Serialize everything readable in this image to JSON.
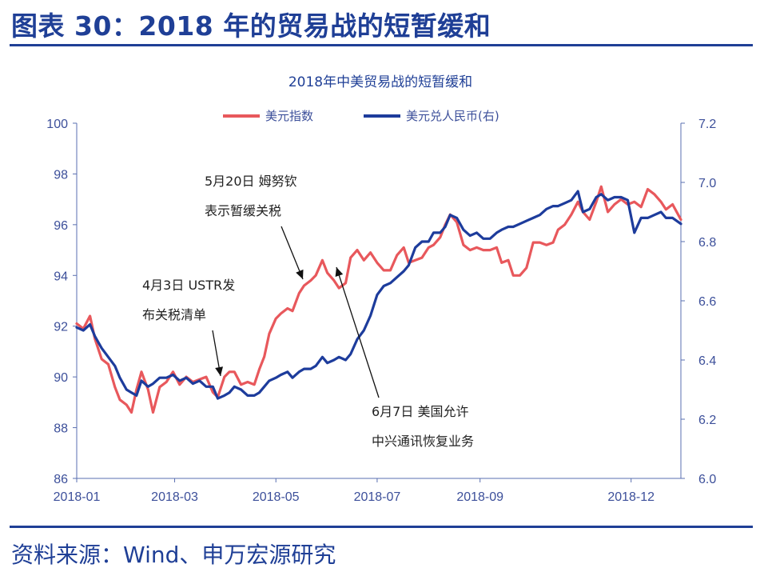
{
  "figure_title": "图表 30：2018 年的贸易战的短暂缓和",
  "source": "资料来源：Wind、申万宏源研究",
  "colors": {
    "accent": "#1f3f96",
    "dollar_index": "#e8585c",
    "usdcny": "#1d3c9c"
  },
  "chart_data": {
    "type": "line",
    "title": "2018年中美贸易战的短暂缓和",
    "legend_position": "top",
    "grid": false,
    "x_ticks": [
      "2018-01",
      "2018-03",
      "2018-05",
      "2018-07",
      "2018-09",
      "2018-12"
    ],
    "x_range": [
      "2018-01-01",
      "2018-12-31"
    ],
    "y_left": {
      "ylim": [
        86,
        100
      ],
      "ticks": [
        86,
        88,
        90,
        92,
        94,
        96,
        98,
        100
      ]
    },
    "y_right": {
      "ylim": [
        6.0,
        7.2
      ],
      "ticks": [
        "6.0",
        "6.2",
        "6.4",
        "6.6",
        "6.8",
        "7.0",
        "7.2"
      ]
    },
    "series": [
      {
        "name": "美元指数",
        "axis": "left",
        "color": "#e8585c",
        "points": [
          [
            "2018-01-01",
            92.1
          ],
          [
            "2018-01-05",
            91.9
          ],
          [
            "2018-01-09",
            92.4
          ],
          [
            "2018-01-12",
            91.5
          ],
          [
            "2018-01-16",
            90.7
          ],
          [
            "2018-01-20",
            90.5
          ],
          [
            "2018-01-24",
            89.6
          ],
          [
            "2018-01-27",
            89.1
          ],
          [
            "2018-01-31",
            88.9
          ],
          [
            "2018-02-03",
            88.6
          ],
          [
            "2018-02-06",
            89.5
          ],
          [
            "2018-02-09",
            90.2
          ],
          [
            "2018-02-13",
            89.5
          ],
          [
            "2018-02-16",
            88.6
          ],
          [
            "2018-02-20",
            89.6
          ],
          [
            "2018-02-24",
            89.8
          ],
          [
            "2018-02-28",
            90.2
          ],
          [
            "2018-03-04",
            89.7
          ],
          [
            "2018-03-08",
            90.0
          ],
          [
            "2018-03-12",
            89.8
          ],
          [
            "2018-03-16",
            89.9
          ],
          [
            "2018-03-20",
            90.0
          ],
          [
            "2018-03-24",
            89.4
          ],
          [
            "2018-03-27",
            89.2
          ],
          [
            "2018-03-31",
            90.0
          ],
          [
            "2018-04-03",
            90.2
          ],
          [
            "2018-04-06",
            90.2
          ],
          [
            "2018-04-10",
            89.7
          ],
          [
            "2018-04-14",
            89.8
          ],
          [
            "2018-04-18",
            89.7
          ],
          [
            "2018-04-21",
            90.3
          ],
          [
            "2018-04-24",
            90.8
          ],
          [
            "2018-04-27",
            91.7
          ],
          [
            "2018-05-01",
            92.3
          ],
          [
            "2018-05-04",
            92.5
          ],
          [
            "2018-05-08",
            92.7
          ],
          [
            "2018-05-11",
            92.6
          ],
          [
            "2018-05-15",
            93.3
          ],
          [
            "2018-05-18",
            93.6
          ],
          [
            "2018-05-22",
            93.8
          ],
          [
            "2018-05-25",
            94.0
          ],
          [
            "2018-05-29",
            94.6
          ],
          [
            "2018-06-01",
            94.1
          ],
          [
            "2018-06-05",
            93.8
          ],
          [
            "2018-06-08",
            93.5
          ],
          [
            "2018-06-12",
            93.7
          ],
          [
            "2018-06-15",
            94.7
          ],
          [
            "2018-06-19",
            95.0
          ],
          [
            "2018-06-23",
            94.6
          ],
          [
            "2018-06-27",
            94.9
          ],
          [
            "2018-07-01",
            94.5
          ],
          [
            "2018-07-05",
            94.2
          ],
          [
            "2018-07-09",
            94.2
          ],
          [
            "2018-07-13",
            94.8
          ],
          [
            "2018-07-17",
            95.1
          ],
          [
            "2018-07-20",
            94.5
          ],
          [
            "2018-07-24",
            94.6
          ],
          [
            "2018-07-28",
            94.7
          ],
          [
            "2018-08-01",
            95.1
          ],
          [
            "2018-08-04",
            95.2
          ],
          [
            "2018-08-08",
            95.5
          ],
          [
            "2018-08-11",
            96.0
          ],
          [
            "2018-08-14",
            96.4
          ],
          [
            "2018-08-18",
            96.1
          ],
          [
            "2018-08-22",
            95.2
          ],
          [
            "2018-08-26",
            95.0
          ],
          [
            "2018-08-30",
            95.1
          ],
          [
            "2018-09-03",
            95.0
          ],
          [
            "2018-09-07",
            95.0
          ],
          [
            "2018-09-11",
            95.1
          ],
          [
            "2018-09-14",
            94.5
          ],
          [
            "2018-09-18",
            94.6
          ],
          [
            "2018-09-21",
            94.0
          ],
          [
            "2018-09-25",
            94.0
          ],
          [
            "2018-09-29",
            94.3
          ],
          [
            "2018-10-03",
            95.3
          ],
          [
            "2018-10-07",
            95.3
          ],
          [
            "2018-10-11",
            95.2
          ],
          [
            "2018-10-15",
            95.3
          ],
          [
            "2018-10-18",
            95.8
          ],
          [
            "2018-10-22",
            96.0
          ],
          [
            "2018-10-26",
            96.4
          ],
          [
            "2018-10-30",
            96.9
          ],
          [
            "2018-11-02",
            96.5
          ],
          [
            "2018-11-06",
            96.2
          ],
          [
            "2018-11-10",
            96.9
          ],
          [
            "2018-11-13",
            97.5
          ],
          [
            "2018-11-17",
            96.5
          ],
          [
            "2018-11-21",
            96.8
          ],
          [
            "2018-11-25",
            97.0
          ],
          [
            "2018-11-29",
            96.8
          ],
          [
            "2018-12-03",
            96.9
          ],
          [
            "2018-12-07",
            96.7
          ],
          [
            "2018-12-11",
            97.4
          ],
          [
            "2018-12-15",
            97.2
          ],
          [
            "2018-12-19",
            96.9
          ],
          [
            "2018-12-22",
            96.6
          ],
          [
            "2018-12-26",
            96.8
          ],
          [
            "2018-12-31",
            96.2
          ]
        ]
      },
      {
        "name": "美元兑人民币(右)",
        "axis": "right",
        "color": "#1d3c9c",
        "points": [
          [
            "2018-01-01",
            6.51
          ],
          [
            "2018-01-05",
            6.5
          ],
          [
            "2018-01-09",
            6.52
          ],
          [
            "2018-01-12",
            6.48
          ],
          [
            "2018-01-16",
            6.44
          ],
          [
            "2018-01-20",
            6.41
          ],
          [
            "2018-01-24",
            6.38
          ],
          [
            "2018-01-27",
            6.34
          ],
          [
            "2018-01-31",
            6.3
          ],
          [
            "2018-02-03",
            6.29
          ],
          [
            "2018-02-06",
            6.28
          ],
          [
            "2018-02-09",
            6.33
          ],
          [
            "2018-02-13",
            6.31
          ],
          [
            "2018-02-16",
            6.32
          ],
          [
            "2018-02-20",
            6.34
          ],
          [
            "2018-02-24",
            6.34
          ],
          [
            "2018-02-28",
            6.35
          ],
          [
            "2018-03-04",
            6.33
          ],
          [
            "2018-03-08",
            6.34
          ],
          [
            "2018-03-12",
            6.32
          ],
          [
            "2018-03-16",
            6.33
          ],
          [
            "2018-03-20",
            6.31
          ],
          [
            "2018-03-24",
            6.31
          ],
          [
            "2018-03-27",
            6.27
          ],
          [
            "2018-03-31",
            6.28
          ],
          [
            "2018-04-03",
            6.29
          ],
          [
            "2018-04-06",
            6.31
          ],
          [
            "2018-04-10",
            6.3
          ],
          [
            "2018-04-14",
            6.28
          ],
          [
            "2018-04-18",
            6.28
          ],
          [
            "2018-04-21",
            6.29
          ],
          [
            "2018-04-24",
            6.31
          ],
          [
            "2018-04-27",
            6.33
          ],
          [
            "2018-05-01",
            6.34
          ],
          [
            "2018-05-04",
            6.35
          ],
          [
            "2018-05-08",
            6.36
          ],
          [
            "2018-05-11",
            6.34
          ],
          [
            "2018-05-15",
            6.36
          ],
          [
            "2018-05-18",
            6.37
          ],
          [
            "2018-05-22",
            6.37
          ],
          [
            "2018-05-25",
            6.38
          ],
          [
            "2018-05-29",
            6.41
          ],
          [
            "2018-06-01",
            6.39
          ],
          [
            "2018-06-05",
            6.4
          ],
          [
            "2018-06-08",
            6.41
          ],
          [
            "2018-06-12",
            6.4
          ],
          [
            "2018-06-15",
            6.42
          ],
          [
            "2018-06-19",
            6.47
          ],
          [
            "2018-06-23",
            6.5
          ],
          [
            "2018-06-27",
            6.55
          ],
          [
            "2018-07-01",
            6.62
          ],
          [
            "2018-07-05",
            6.65
          ],
          [
            "2018-07-09",
            6.66
          ],
          [
            "2018-07-13",
            6.68
          ],
          [
            "2018-07-17",
            6.7
          ],
          [
            "2018-07-20",
            6.72
          ],
          [
            "2018-07-24",
            6.78
          ],
          [
            "2018-07-28",
            6.8
          ],
          [
            "2018-08-01",
            6.8
          ],
          [
            "2018-08-04",
            6.83
          ],
          [
            "2018-08-08",
            6.83
          ],
          [
            "2018-08-11",
            6.85
          ],
          [
            "2018-08-14",
            6.89
          ],
          [
            "2018-08-18",
            6.88
          ],
          [
            "2018-08-22",
            6.84
          ],
          [
            "2018-08-26",
            6.82
          ],
          [
            "2018-08-30",
            6.83
          ],
          [
            "2018-09-03",
            6.81
          ],
          [
            "2018-09-07",
            6.81
          ],
          [
            "2018-09-11",
            6.83
          ],
          [
            "2018-09-14",
            6.84
          ],
          [
            "2018-09-18",
            6.85
          ],
          [
            "2018-09-21",
            6.85
          ],
          [
            "2018-09-25",
            6.86
          ],
          [
            "2018-09-29",
            6.87
          ],
          [
            "2018-10-03",
            6.88
          ],
          [
            "2018-10-07",
            6.89
          ],
          [
            "2018-10-11",
            6.91
          ],
          [
            "2018-10-15",
            6.92
          ],
          [
            "2018-10-18",
            6.92
          ],
          [
            "2018-10-22",
            6.93
          ],
          [
            "2018-10-26",
            6.94
          ],
          [
            "2018-10-30",
            6.97
          ],
          [
            "2018-11-02",
            6.9
          ],
          [
            "2018-11-06",
            6.91
          ],
          [
            "2018-11-10",
            6.95
          ],
          [
            "2018-11-13",
            6.96
          ],
          [
            "2018-11-17",
            6.94
          ],
          [
            "2018-11-21",
            6.95
          ],
          [
            "2018-11-25",
            6.95
          ],
          [
            "2018-11-29",
            6.94
          ],
          [
            "2018-12-03",
            6.83
          ],
          [
            "2018-12-07",
            6.88
          ],
          [
            "2018-12-11",
            6.88
          ],
          [
            "2018-12-15",
            6.89
          ],
          [
            "2018-12-19",
            6.9
          ],
          [
            "2018-12-22",
            6.88
          ],
          [
            "2018-12-26",
            6.88
          ],
          [
            "2018-12-31",
            6.86
          ]
        ]
      }
    ],
    "annotations": [
      {
        "lines": [
          "4月3日 USTR发",
          "布关税清单"
        ],
        "date": "2018-04-03"
      },
      {
        "lines": [
          "5月20日 姆努钦",
          "表示暂缓关税"
        ],
        "date": "2018-05-20"
      },
      {
        "lines": [
          "6月7日 美国允许",
          "中兴通讯恢复业务"
        ],
        "date": "2018-06-07"
      }
    ]
  }
}
